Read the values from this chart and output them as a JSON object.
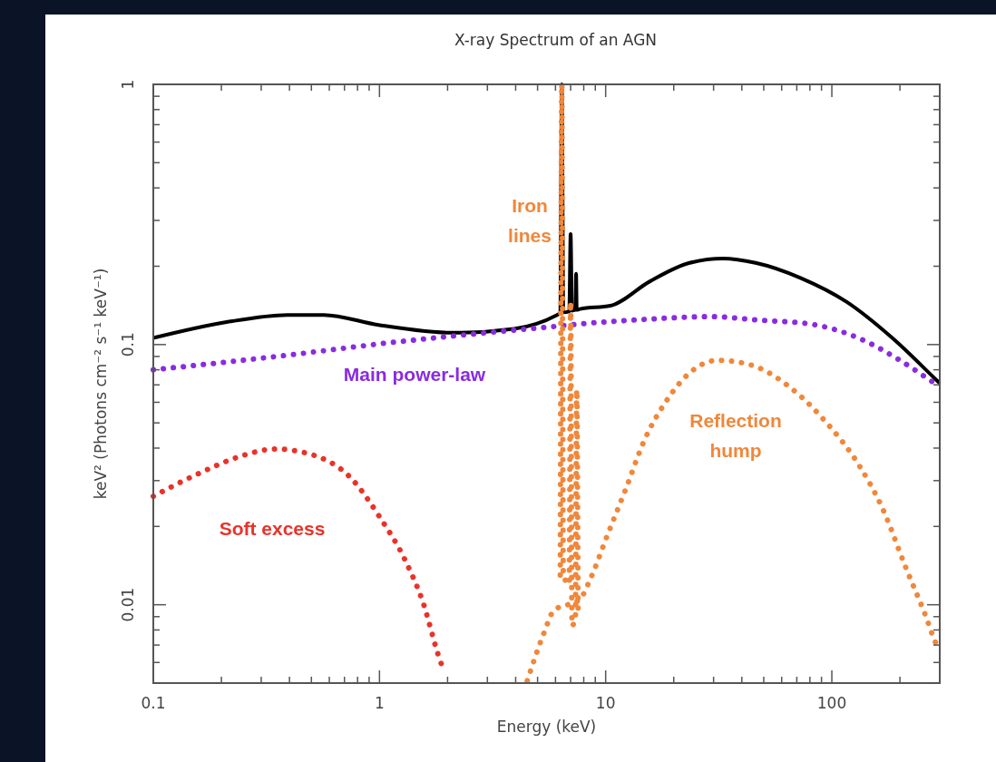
{
  "chart_data": {
    "type": "line",
    "title": "X-ray Spectrum of an AGN",
    "xlabel": "Energy (keV)",
    "ylabel": "keV² (Photons cm⁻² s⁻¹ keV⁻¹)",
    "log": "xy",
    "grid": false,
    "marker": "none",
    "xlim": [
      0.1,
      300
    ],
    "ylim": [
      0.005,
      1
    ],
    "xticks": [
      0.1,
      {
        "value": 0.2,
        "label": null
      },
      {
        "value": 0.3,
        "label": null
      },
      {
        "value": 0.4,
        "label": null
      },
      {
        "value": 0.5,
        "label": null
      },
      {
        "value": 0.6,
        "label": null
      },
      {
        "value": 0.7,
        "label": null
      },
      {
        "value": 0.8,
        "label": null
      },
      {
        "value": 0.9,
        "label": null
      },
      1,
      {
        "value": 2,
        "label": null
      },
      {
        "value": 3,
        "label": null
      },
      {
        "value": 4,
        "label": null
      },
      {
        "value": 5,
        "label": null
      },
      {
        "value": 6,
        "label": null
      },
      {
        "value": 7,
        "label": null
      },
      {
        "value": 8,
        "label": null
      },
      {
        "value": 9,
        "label": null
      },
      10,
      {
        "value": 20,
        "label": null
      },
      {
        "value": 30,
        "label": null
      },
      {
        "value": 40,
        "label": null
      },
      {
        "value": 50,
        "label": null
      },
      {
        "value": 60,
        "label": null
      },
      {
        "value": 70,
        "label": null
      },
      {
        "value": 80,
        "label": null
      },
      {
        "value": 90,
        "label": null
      },
      100,
      {
        "value": 200,
        "label": null
      },
      {
        "value": 300,
        "label": null
      }
    ],
    "yticks": [
      {
        "value": 0.005,
        "label": null
      },
      {
        "value": 0.006,
        "label": null
      },
      {
        "value": 0.007,
        "label": null
      },
      {
        "value": 0.008,
        "label": null
      },
      {
        "value": 0.009,
        "label": null
      },
      0.01,
      {
        "value": 0.02,
        "label": null
      },
      {
        "value": 0.03,
        "label": null
      },
      {
        "value": 0.04,
        "label": null
      },
      {
        "value": 0.05,
        "label": null
      },
      {
        "value": 0.06,
        "label": null
      },
      {
        "value": 0.07,
        "label": null
      },
      {
        "value": 0.08,
        "label": null
      },
      {
        "value": 0.09,
        "label": null
      },
      0.1,
      {
        "value": 0.2,
        "label": null
      },
      {
        "value": 0.3,
        "label": null
      },
      {
        "value": 0.4,
        "label": null
      },
      {
        "value": 0.5,
        "label": null
      },
      {
        "value": 0.6,
        "label": null
      },
      {
        "value": 0.7,
        "label": null
      },
      {
        "value": 0.8,
        "label": null
      },
      {
        "value": 0.9,
        "label": null
      },
      1
    ],
    "series": [
      {
        "color": "#000000",
        "line_style": "solid",
        "x": [
          0.1,
          0.211,
          0.392,
          0.567,
          0.99,
          2.12,
          3.94,
          6.1,
          6.3,
          6.4,
          6.5,
          6.9,
          7.0,
          7.1,
          7.35,
          7.4,
          7.45,
          7.7,
          10.5,
          15.7,
          23.5,
          33,
          46,
          73,
          116,
          185,
          295,
          300
        ],
        "values": [
          0.106,
          0.122,
          0.13,
          0.13,
          0.119,
          0.111,
          0.115,
          0.13,
          0.132,
          1.0,
          0.133,
          0.134,
          0.266,
          0.135,
          0.136,
          0.187,
          0.136,
          0.137,
          0.141,
          0.175,
          0.206,
          0.214,
          0.206,
          0.18,
          0.146,
          0.106,
          0.072,
          0.071
        ]
      },
      {
        "name": "Main power-law",
        "color": "#8a2be2",
        "line_style": "dotted",
        "x": [
          0.1,
          0.392,
          1.04,
          2.39,
          5.7,
          7.7,
          15,
          29.1,
          48.6,
          80,
          131,
          200,
          285,
          300
        ],
        "values": [
          0.08,
          0.091,
          0.101,
          0.109,
          0.117,
          0.12,
          0.125,
          0.128,
          0.124,
          0.12,
          0.106,
          0.087,
          0.071,
          0.069
        ]
      },
      {
        "name": "Soft excess",
        "color": "#e8332a",
        "line_style": "dotted",
        "x": [
          0.1,
          0.157,
          0.25,
          0.345,
          0.484,
          0.75,
          1.0,
          1.3,
          1.57,
          1.81,
          1.92
        ],
        "values": [
          0.0261,
          0.0318,
          0.0375,
          0.0397,
          0.0381,
          0.0306,
          0.0218,
          0.0148,
          0.01,
          0.0065,
          0.0056
        ]
      },
      {
        "name": "Reflection hump",
        "color": "#f0873a",
        "line_style": "dotted",
        "x": [
          4.5,
          5.34,
          5.9,
          7.7,
          8.5,
          10.2,
          12.3,
          14.7,
          18.9,
          23.5,
          31.3,
          43.8,
          67.5,
          96,
          131,
          167,
          213,
          257,
          292,
          300
        ],
        "values": [
          0.0051,
          0.0078,
          0.0095,
          0.0105,
          0.0124,
          0.0186,
          0.028,
          0.0421,
          0.0622,
          0.0778,
          0.087,
          0.0835,
          0.0669,
          0.0494,
          0.0347,
          0.0236,
          0.0138,
          0.0093,
          0.007,
          0.0068
        ]
      },
      {
        "name": "Iron lines",
        "color": "#f0873a",
        "line_style": "dotted",
        "x": [
          6.3,
          6.4,
          6.5,
          6.9,
          7.0,
          7.1,
          7.35,
          7.45,
          7.55
        ],
        "values": [
          0.013,
          1.0,
          0.013,
          0.012,
          0.146,
          0.0083,
          0.009,
          0.067,
          0.0095
        ]
      }
    ]
  }
}
